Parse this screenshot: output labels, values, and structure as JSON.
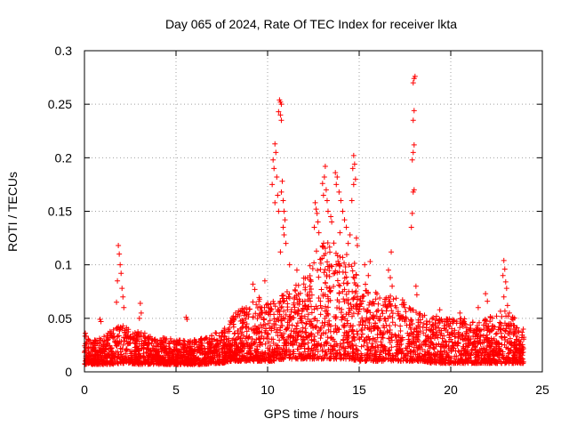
{
  "chart_data": {
    "type": "scatter",
    "title": "Day 065 of 2024, Rate Of TEC Index for receiver lkta",
    "xlabel": "GPS time / hours",
    "ylabel": "ROTI / TECUs",
    "xlim": [
      0,
      25
    ],
    "ylim": [
      0,
      0.3
    ],
    "xticks": [
      "0",
      "5",
      "10",
      "15",
      "20",
      "25"
    ],
    "yticks": [
      "0",
      "0.05",
      "0.1",
      "0.15",
      "0.2",
      "0.25",
      "0.3"
    ],
    "grid": true,
    "marker": "+",
    "color": "#ff0000",
    "series": [
      {
        "name": "ROTI",
        "envelope": {
          "x": [
            0,
            0.5,
            1,
            1.5,
            2,
            2.5,
            3,
            3.5,
            4,
            4.5,
            5,
            5.5,
            6,
            6.5,
            7,
            7.5,
            8,
            8.5,
            9,
            9.5,
            10,
            10.5,
            11,
            11.5,
            12,
            12.5,
            13,
            13.5,
            14,
            14.5,
            15,
            15.5,
            16,
            16.5,
            17,
            17.5,
            18,
            18.5,
            19,
            19.5,
            20,
            20.5,
            21,
            21.5,
            22,
            22.5,
            23,
            23.5,
            24
          ],
          "low": [
            0.007,
            0.007,
            0.007,
            0.007,
            0.008,
            0.008,
            0.007,
            0.007,
            0.007,
            0.007,
            0.007,
            0.007,
            0.007,
            0.007,
            0.008,
            0.008,
            0.01,
            0.01,
            0.01,
            0.01,
            0.01,
            0.01,
            0.012,
            0.012,
            0.012,
            0.012,
            0.012,
            0.012,
            0.012,
            0.012,
            0.01,
            0.01,
            0.01,
            0.01,
            0.01,
            0.01,
            0.01,
            0.01,
            0.008,
            0.008,
            0.008,
            0.008,
            0.008,
            0.008,
            0.008,
            0.008,
            0.008,
            0.008,
            0.008
          ],
          "high": [
            0.035,
            0.03,
            0.032,
            0.04,
            0.045,
            0.04,
            0.038,
            0.035,
            0.03,
            0.033,
            0.03,
            0.03,
            0.03,
            0.032,
            0.035,
            0.04,
            0.05,
            0.06,
            0.065,
            0.07,
            0.065,
            0.07,
            0.075,
            0.08,
            0.09,
            0.11,
            0.12,
            0.125,
            0.11,
            0.11,
            0.095,
            0.08,
            0.075,
            0.07,
            0.075,
            0.065,
            0.06,
            0.055,
            0.055,
            0.05,
            0.05,
            0.05,
            0.05,
            0.048,
            0.05,
            0.055,
            0.06,
            0.05,
            0.04
          ]
        },
        "outliers": [
          {
            "x": 0.05,
            "y": 0.036
          },
          {
            "x": 0.85,
            "y": 0.049
          },
          {
            "x": 0.9,
            "y": 0.047
          },
          {
            "x": 1.85,
            "y": 0.118
          },
          {
            "x": 1.9,
            "y": 0.11
          },
          {
            "x": 1.95,
            "y": 0.1
          },
          {
            "x": 2.0,
            "y": 0.092
          },
          {
            "x": 1.8,
            "y": 0.085
          },
          {
            "x": 2.05,
            "y": 0.078
          },
          {
            "x": 2.1,
            "y": 0.07
          },
          {
            "x": 1.75,
            "y": 0.065
          },
          {
            "x": 2.15,
            "y": 0.06
          },
          {
            "x": 3.05,
            "y": 0.064
          },
          {
            "x": 3.1,
            "y": 0.055
          },
          {
            "x": 3.0,
            "y": 0.05
          },
          {
            "x": 5.55,
            "y": 0.051
          },
          {
            "x": 5.6,
            "y": 0.049
          },
          {
            "x": 9.2,
            "y": 0.082
          },
          {
            "x": 9.3,
            "y": 0.077
          },
          {
            "x": 9.85,
            "y": 0.085
          },
          {
            "x": 10.4,
            "y": 0.213
          },
          {
            "x": 10.45,
            "y": 0.205
          },
          {
            "x": 10.3,
            "y": 0.198
          },
          {
            "x": 10.35,
            "y": 0.19
          },
          {
            "x": 10.5,
            "y": 0.182
          },
          {
            "x": 10.25,
            "y": 0.175
          },
          {
            "x": 10.55,
            "y": 0.165
          },
          {
            "x": 10.4,
            "y": 0.158
          },
          {
            "x": 10.6,
            "y": 0.15
          },
          {
            "x": 10.65,
            "y": 0.254
          },
          {
            "x": 10.7,
            "y": 0.252
          },
          {
            "x": 10.75,
            "y": 0.25
          },
          {
            "x": 10.6,
            "y": 0.243
          },
          {
            "x": 10.7,
            "y": 0.24
          },
          {
            "x": 10.75,
            "y": 0.235
          },
          {
            "x": 10.8,
            "y": 0.178
          },
          {
            "x": 10.75,
            "y": 0.168
          },
          {
            "x": 10.85,
            "y": 0.16
          },
          {
            "x": 10.9,
            "y": 0.15
          },
          {
            "x": 10.95,
            "y": 0.142
          },
          {
            "x": 10.85,
            "y": 0.135
          },
          {
            "x": 10.9,
            "y": 0.128
          },
          {
            "x": 11.0,
            "y": 0.12
          },
          {
            "x": 10.7,
            "y": 0.112
          },
          {
            "x": 11.2,
            "y": 0.1
          },
          {
            "x": 11.6,
            "y": 0.095
          },
          {
            "x": 12.6,
            "y": 0.158
          },
          {
            "x": 12.65,
            "y": 0.152
          },
          {
            "x": 12.7,
            "y": 0.148
          },
          {
            "x": 12.75,
            "y": 0.14
          },
          {
            "x": 12.55,
            "y": 0.135
          },
          {
            "x": 12.8,
            "y": 0.13
          },
          {
            "x": 13.0,
            "y": 0.176
          },
          {
            "x": 13.1,
            "y": 0.182
          },
          {
            "x": 13.15,
            "y": 0.192
          },
          {
            "x": 13.2,
            "y": 0.17
          },
          {
            "x": 13.05,
            "y": 0.165
          },
          {
            "x": 13.25,
            "y": 0.16
          },
          {
            "x": 13.3,
            "y": 0.15
          },
          {
            "x": 13.45,
            "y": 0.145
          },
          {
            "x": 13.5,
            "y": 0.14
          },
          {
            "x": 13.7,
            "y": 0.186
          },
          {
            "x": 13.8,
            "y": 0.182
          },
          {
            "x": 13.75,
            "y": 0.175
          },
          {
            "x": 13.9,
            "y": 0.168
          },
          {
            "x": 14.0,
            "y": 0.16
          },
          {
            "x": 14.1,
            "y": 0.15
          },
          {
            "x": 14.2,
            "y": 0.142
          },
          {
            "x": 14.3,
            "y": 0.135
          },
          {
            "x": 13.95,
            "y": 0.13
          },
          {
            "x": 14.4,
            "y": 0.12
          },
          {
            "x": 14.5,
            "y": 0.128
          },
          {
            "x": 14.7,
            "y": 0.202
          },
          {
            "x": 14.75,
            "y": 0.194
          },
          {
            "x": 14.65,
            "y": 0.19
          },
          {
            "x": 14.8,
            "y": 0.18
          },
          {
            "x": 14.7,
            "y": 0.175
          },
          {
            "x": 14.6,
            "y": 0.16
          },
          {
            "x": 14.85,
            "y": 0.125
          },
          {
            "x": 14.9,
            "y": 0.118
          },
          {
            "x": 15.3,
            "y": 0.1
          },
          {
            "x": 15.6,
            "y": 0.103
          },
          {
            "x": 15.5,
            "y": 0.09
          },
          {
            "x": 16.6,
            "y": 0.095
          },
          {
            "x": 16.7,
            "y": 0.088
          },
          {
            "x": 16.8,
            "y": 0.08
          },
          {
            "x": 16.75,
            "y": 0.112
          },
          {
            "x": 17.85,
            "y": 0.135
          },
          {
            "x": 17.9,
            "y": 0.148
          },
          {
            "x": 17.95,
            "y": 0.168
          },
          {
            "x": 18.0,
            "y": 0.17
          },
          {
            "x": 17.9,
            "y": 0.198
          },
          {
            "x": 17.95,
            "y": 0.205
          },
          {
            "x": 18.0,
            "y": 0.212
          },
          {
            "x": 17.95,
            "y": 0.235
          },
          {
            "x": 18.0,
            "y": 0.244
          },
          {
            "x": 17.95,
            "y": 0.27
          },
          {
            "x": 18.0,
            "y": 0.274
          },
          {
            "x": 18.05,
            "y": 0.276
          },
          {
            "x": 18.1,
            "y": 0.08
          },
          {
            "x": 18.15,
            "y": 0.072
          },
          {
            "x": 19.4,
            "y": 0.058
          },
          {
            "x": 20.5,
            "y": 0.055
          },
          {
            "x": 21.5,
            "y": 0.06
          },
          {
            "x": 21.9,
            "y": 0.073
          },
          {
            "x": 22.0,
            "y": 0.066
          },
          {
            "x": 22.5,
            "y": 0.052
          },
          {
            "x": 22.9,
            "y": 0.104
          },
          {
            "x": 22.95,
            "y": 0.096
          },
          {
            "x": 22.85,
            "y": 0.09
          },
          {
            "x": 23.0,
            "y": 0.084
          },
          {
            "x": 23.05,
            "y": 0.078
          },
          {
            "x": 22.9,
            "y": 0.07
          },
          {
            "x": 23.1,
            "y": 0.062
          },
          {
            "x": 23.2,
            "y": 0.055
          }
        ]
      }
    ]
  }
}
